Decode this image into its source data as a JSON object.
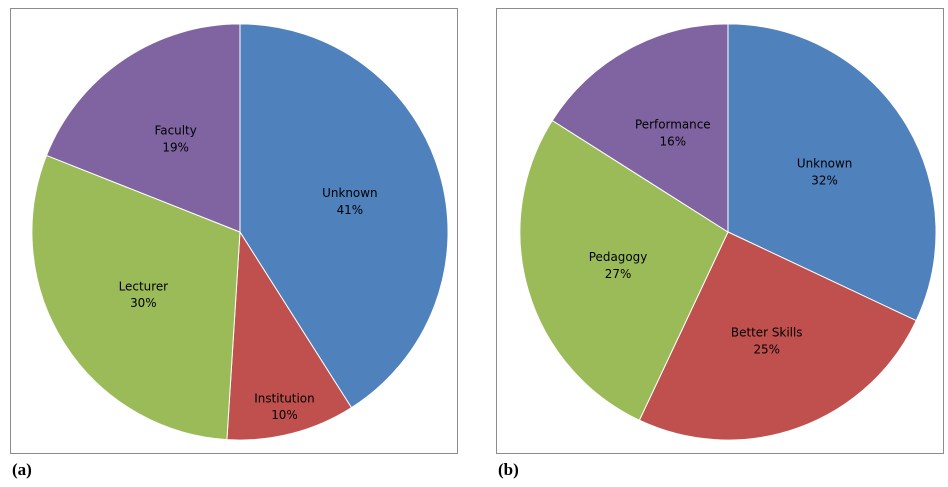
{
  "panels": [
    {
      "label": "(a)"
    },
    {
      "label": "(b)"
    }
  ],
  "chart_data": [
    {
      "type": "pie",
      "title": "",
      "start_angle_deg": 0,
      "direction": "clockwise",
      "slices": [
        {
          "label": "Unknown",
          "value": 41,
          "value_label": "41%",
          "color": "#4f81bd"
        },
        {
          "label": "Institution",
          "value": 10,
          "value_label": "10%",
          "color": "#c0504d"
        },
        {
          "label": "Lecturer",
          "value": 30,
          "value_label": "30%",
          "color": "#9bbb59"
        },
        {
          "label": "Faculty",
          "value": 19,
          "value_label": "19%",
          "color": "#8064a2"
        }
      ]
    },
    {
      "type": "pie",
      "title": "",
      "start_angle_deg": 0,
      "direction": "clockwise",
      "slices": [
        {
          "label": "Unknown",
          "value": 32,
          "value_label": "32%",
          "color": "#4f81bd"
        },
        {
          "label": "Better Skills",
          "value": 25,
          "value_label": "25%",
          "color": "#c0504d"
        },
        {
          "label": "Pedagogy",
          "value": 27,
          "value_label": "27%",
          "color": "#9bbb59"
        },
        {
          "label": "Performance",
          "value": 16,
          "value_label": "16%",
          "color": "#8064a2"
        }
      ]
    }
  ]
}
